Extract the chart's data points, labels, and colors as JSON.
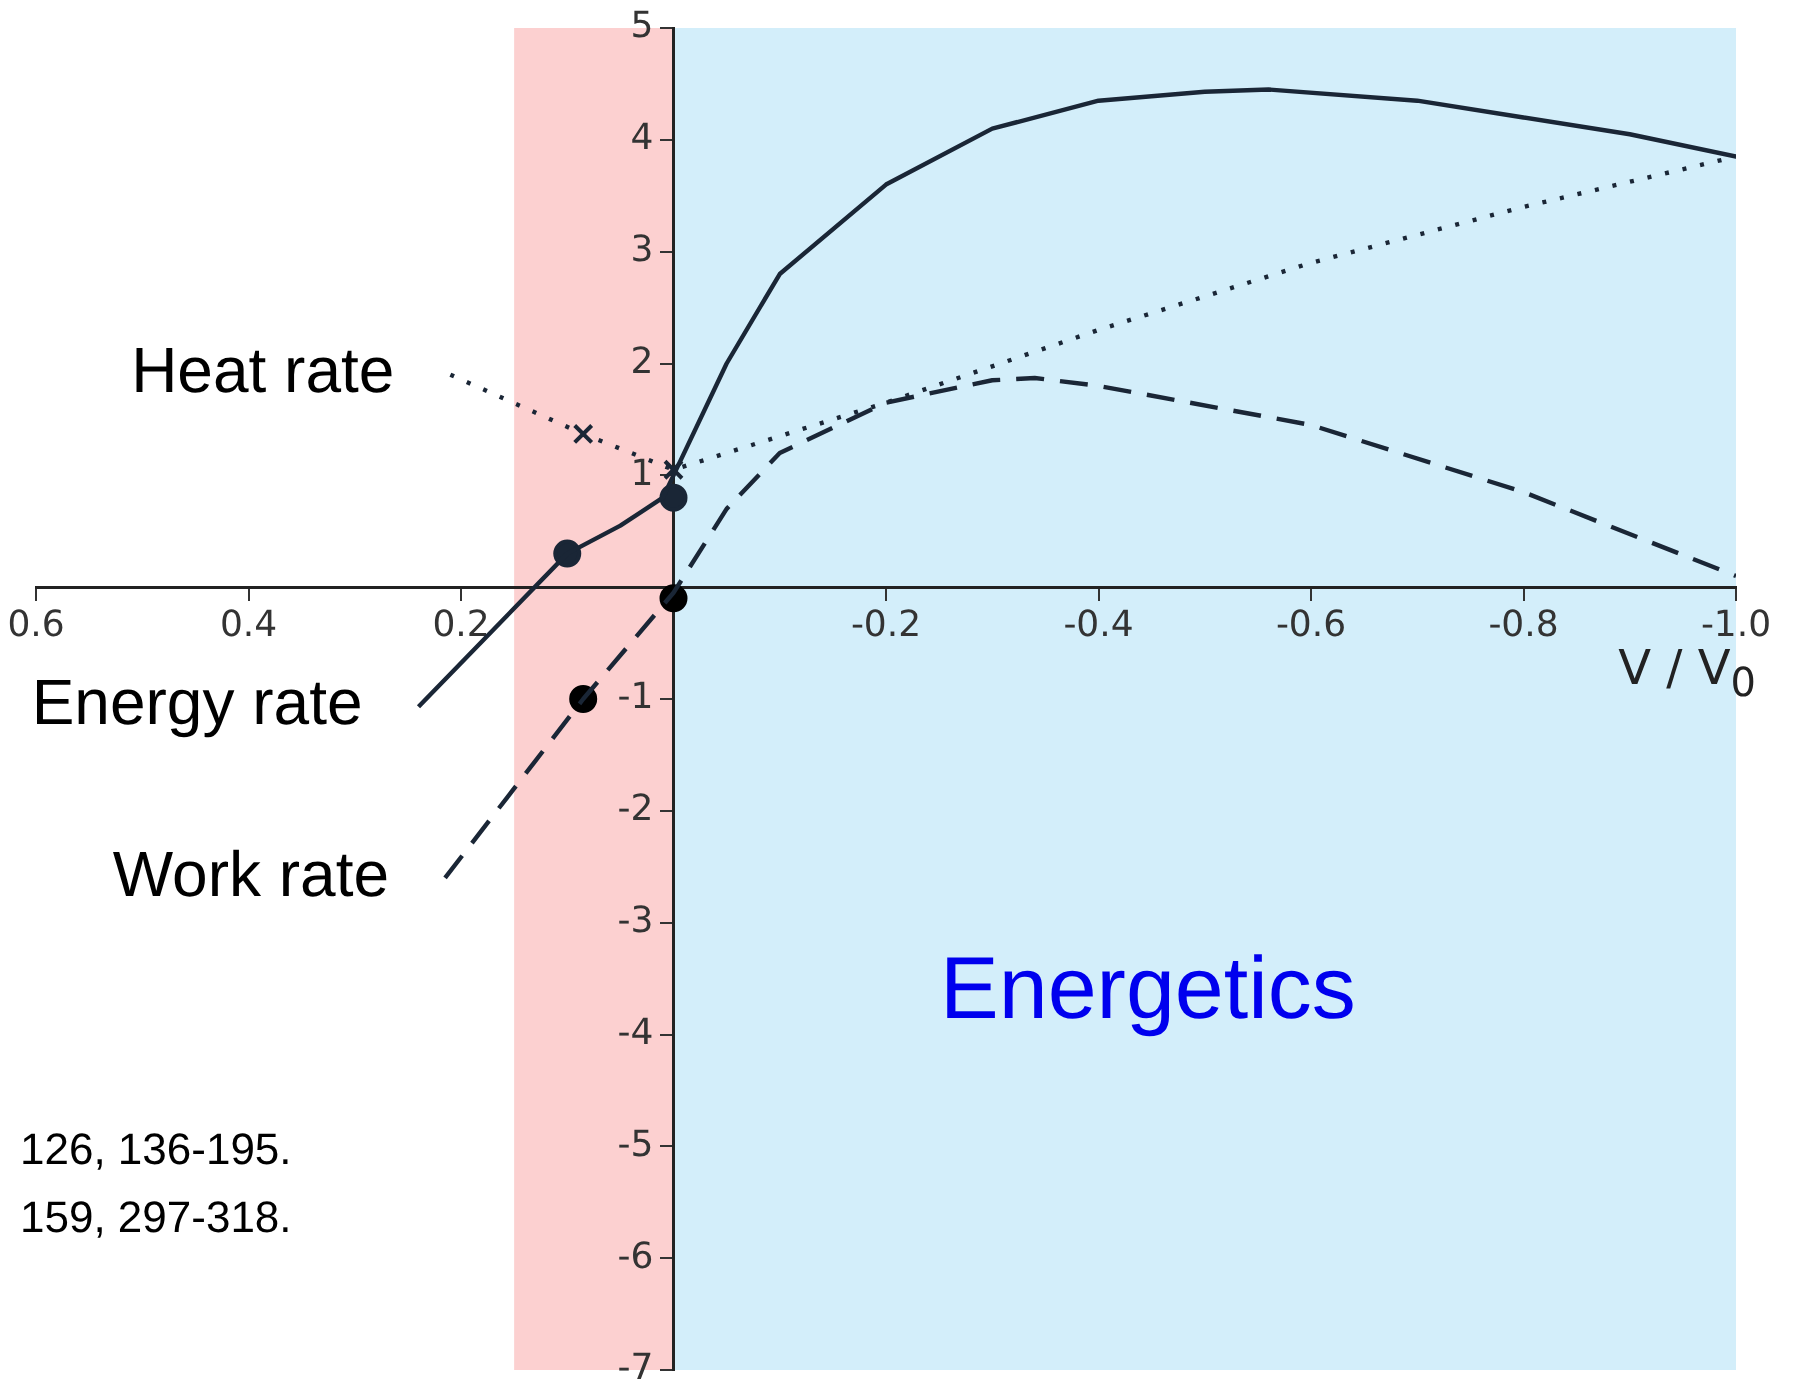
{
  "chart_data": {
    "type": "line",
    "xlabel": "V / V$_{0}$",
    "xlim": [
      0.6,
      -1.0
    ],
    "xticks": [
      0.6,
      0.4,
      0.2,
      -0.2,
      -0.4,
      -0.6,
      -0.8,
      {
        "value": -1.0,
        "label": "-1.0"
      }
    ],
    "ylim": [
      -7,
      5
    ],
    "yticks": [
      -7,
      -6,
      -5,
      -4,
      -3,
      -2,
      -1,
      1,
      2,
      3,
      4,
      5
    ],
    "grid": false,
    "legend": false,
    "bands": [
      {
        "axis": "x",
        "from": 0.15,
        "to": 0,
        "color": "#fcd0d0"
      },
      {
        "axis": "x",
        "from": 0,
        "to": -1.0,
        "color": "#d3eefa"
      }
    ],
    "series": [
      {
        "name": "Heat rate",
        "type": "line",
        "line_style": "dotted",
        "color": "#1a2636",
        "x": [
          0.21,
          0.085,
          0,
          -0.2,
          -0.4,
          -0.6,
          -0.8,
          -1.0
        ],
        "values": [
          1.9,
          1.37,
          1.05,
          1.65,
          2.3,
          2.9,
          3.4,
          3.85
        ]
      },
      {
        "name": "Energy rate",
        "type": "line",
        "line_style": "solid",
        "color": "#1a2636",
        "x": [
          0.24,
          0.1,
          0.05,
          0.01,
          0,
          -0.05,
          -0.1,
          -0.2,
          -0.3,
          -0.4,
          -0.5,
          -0.56,
          -0.7,
          -0.8,
          -0.9,
          -1.0
        ],
        "values": [
          -1.07,
          0.3,
          0.55,
          0.8,
          1.0,
          2.0,
          2.8,
          3.6,
          4.1,
          4.35,
          4.43,
          4.45,
          4.35,
          4.2,
          4.05,
          3.85
        ]
      },
      {
        "name": "Work rate",
        "type": "line",
        "line_style": "dashed",
        "color": "#1a2636",
        "x": [
          0.215,
          0.085,
          0,
          -0.05,
          -0.1,
          -0.2,
          -0.3,
          -0.34,
          -0.4,
          -0.6,
          -0.8,
          -1.0
        ],
        "values": [
          -2.6,
          -1.0,
          -0.05,
          0.7,
          1.2,
          1.65,
          1.85,
          1.87,
          1.8,
          1.45,
          0.85,
          0.1
        ]
      },
      {
        "type": "scatter",
        "marker": "cross",
        "color": "#1a2636",
        "x": [
          0.085,
          0
        ],
        "values": [
          1.37,
          1.05
        ]
      },
      {
        "type": "scatter",
        "marker": "circle",
        "color": "#1a2636",
        "x": [
          0.1,
          0
        ],
        "values": [
          0.3,
          0.8
        ]
      },
      {
        "type": "scatter",
        "marker": "circle",
        "color": "#000000",
        "x": [
          0.085,
          0
        ],
        "values": [
          -1.0,
          -0.1
        ]
      }
    ],
    "annotations": [
      "Energetics",
      "126, 136-195.",
      "159, 297-318."
    ]
  }
}
